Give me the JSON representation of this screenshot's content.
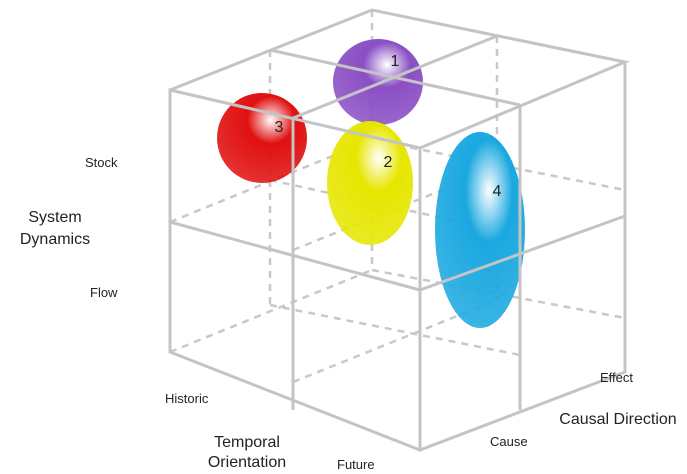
{
  "axes": {
    "vertical": {
      "title": [
        "System",
        "Dynamics"
      ],
      "levels": [
        "Stock",
        "Flow"
      ]
    },
    "depth": {
      "title": [
        "Temporal",
        "Orientation"
      ],
      "levels": [
        "Historic",
        "Future"
      ]
    },
    "horizontal": {
      "title": "Causal Direction",
      "levels": [
        "Cause",
        "Effect"
      ]
    }
  },
  "nodes": [
    {
      "label": "1",
      "color": "#8a4fc4"
    },
    {
      "label": "2",
      "color": "#e6e600"
    },
    {
      "label": "3",
      "color": "#e01010"
    },
    {
      "label": "4",
      "color": "#1aa8e0"
    }
  ]
}
